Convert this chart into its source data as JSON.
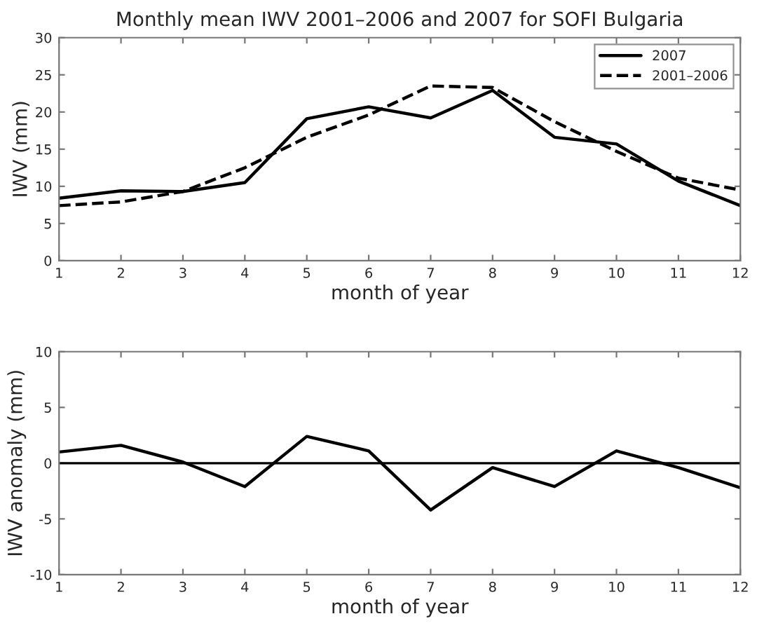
{
  "chart_data": [
    {
      "type": "line",
      "title": "Monthly mean IWV 2001–2006 and 2007 for SOFI Bulgaria",
      "xlabel": "month of year",
      "ylabel": "IWV (mm)",
      "x": [
        1,
        2,
        3,
        4,
        5,
        6,
        7,
        8,
        9,
        10,
        11,
        12
      ],
      "xlim": [
        1,
        12
      ],
      "xticks": [
        1,
        2,
        3,
        4,
        5,
        6,
        7,
        8,
        9,
        10,
        11,
        12
      ],
      "ylim": [
        0,
        30
      ],
      "yticks": [
        0,
        5,
        10,
        15,
        20,
        25,
        30
      ],
      "legend": "top right",
      "grid": false,
      "series": [
        {
          "name": "2007",
          "color": "#000000",
          "line_style": "solid",
          "values": [
            8.4,
            9.4,
            9.3,
            10.5,
            19.1,
            20.7,
            19.2,
            22.9,
            16.6,
            15.7,
            10.7,
            7.4
          ]
        },
        {
          "name": "2001–2006",
          "color": "#000000",
          "line_style": "dashed",
          "values": [
            7.4,
            7.9,
            9.3,
            12.5,
            16.6,
            19.6,
            23.5,
            23.3,
            18.7,
            14.7,
            11.1,
            9.5
          ]
        }
      ]
    },
    {
      "type": "line",
      "xlabel": "month of year",
      "ylabel": "IWV anomaly (mm)",
      "x": [
        1,
        2,
        3,
        4,
        5,
        6,
        7,
        8,
        9,
        10,
        11,
        12
      ],
      "xlim": [
        1,
        12
      ],
      "xticks": [
        1,
        2,
        3,
        4,
        5,
        6,
        7,
        8,
        9,
        10,
        11,
        12
      ],
      "ylim": [
        -10,
        10
      ],
      "yticks": [
        -10,
        -5,
        0,
        5,
        10
      ],
      "grid": false,
      "ref_lines": [
        {
          "axis": "y",
          "value": 0,
          "color": "#000000"
        }
      ],
      "series": [
        {
          "color": "#000000",
          "line_style": "solid",
          "values": [
            1.0,
            1.6,
            0.1,
            -2.1,
            2.4,
            1.1,
            -4.2,
            -0.4,
            -2.1,
            1.1,
            -0.4,
            -2.2
          ]
        }
      ]
    }
  ]
}
